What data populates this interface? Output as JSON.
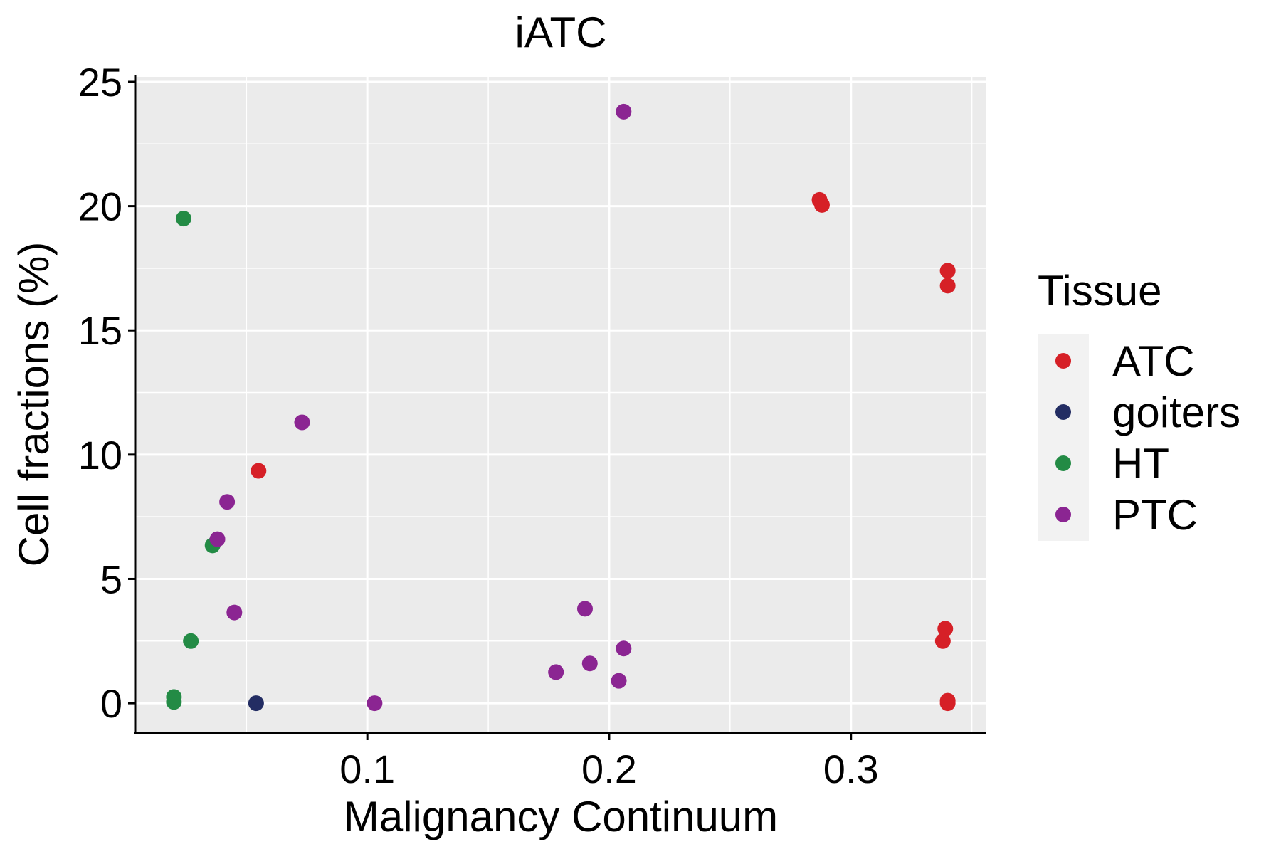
{
  "chart_data": {
    "type": "scatter",
    "title": "iATC",
    "xlabel": "Malignancy Continuum",
    "ylabel": "Cell fractions (%)",
    "xlim": [
      0.004,
      0.356
    ],
    "ylim": [
      -1.2,
      25.2
    ],
    "x_ticks": [
      0.1,
      0.2,
      0.3
    ],
    "x_tick_labels": [
      "0.1",
      "0.2",
      "0.3"
    ],
    "y_ticks": [
      0,
      5,
      10,
      15,
      20,
      25
    ],
    "y_tick_labels": [
      "0",
      "5",
      "10",
      "15",
      "20",
      "25"
    ],
    "grid": true,
    "legend": {
      "title": "Tissue",
      "placement": "right",
      "entries": [
        {
          "label": "ATC",
          "color": "#d62027"
        },
        {
          "label": "goiters",
          "color": "#232d63"
        },
        {
          "label": "HT",
          "color": "#238b45"
        },
        {
          "label": "PTC",
          "color": "#8b2592"
        }
      ]
    },
    "series": [
      {
        "name": "ATC",
        "color": "#d62027",
        "points": [
          [
            0.055,
            9.35
          ],
          [
            0.287,
            20.25
          ],
          [
            0.288,
            20.05
          ],
          [
            0.34,
            17.4
          ],
          [
            0.34,
            16.8
          ],
          [
            0.339,
            3.0
          ],
          [
            0.338,
            2.5
          ],
          [
            0.34,
            0.1
          ],
          [
            0.34,
            0.0
          ]
        ]
      },
      {
        "name": "goiters",
        "color": "#232d63",
        "points": [
          [
            0.054,
            0.0
          ]
        ]
      },
      {
        "name": "HT",
        "color": "#238b45",
        "points": [
          [
            0.024,
            19.5
          ],
          [
            0.036,
            6.35
          ],
          [
            0.027,
            2.5
          ],
          [
            0.02,
            0.25
          ],
          [
            0.02,
            0.05
          ]
        ]
      },
      {
        "name": "PTC",
        "color": "#8b2592",
        "points": [
          [
            0.206,
            23.8
          ],
          [
            0.073,
            11.3
          ],
          [
            0.042,
            8.1
          ],
          [
            0.038,
            6.6
          ],
          [
            0.045,
            3.65
          ],
          [
            0.103,
            0.0
          ],
          [
            0.19,
            3.8
          ],
          [
            0.206,
            2.2
          ],
          [
            0.192,
            1.6
          ],
          [
            0.178,
            1.25
          ],
          [
            0.204,
            0.9
          ]
        ]
      }
    ]
  }
}
